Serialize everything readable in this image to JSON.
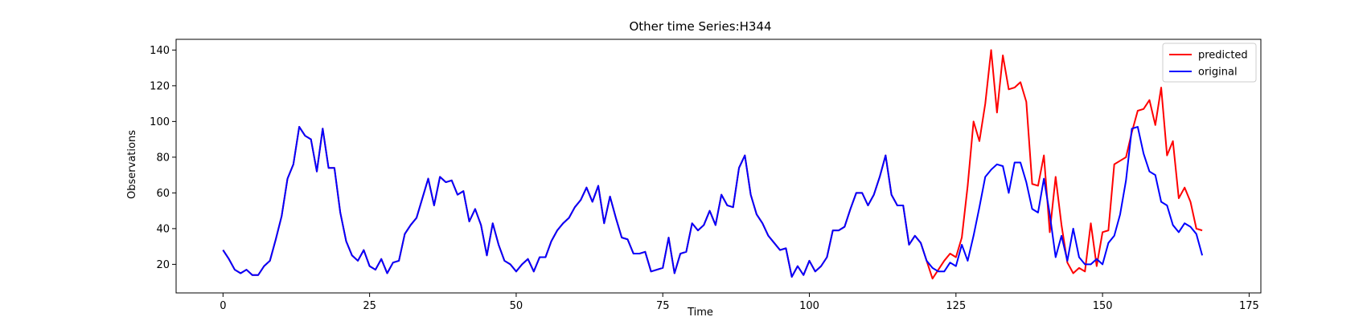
{
  "chart_data": {
    "type": "line",
    "title": "Other time Series:H344",
    "xlabel": "Time",
    "ylabel": "Observations",
    "xlim": [
      -8,
      177
    ],
    "ylim": [
      4,
      146
    ],
    "xticks": [
      0,
      25,
      50,
      75,
      100,
      125,
      150,
      175
    ],
    "yticks": [
      20,
      40,
      60,
      80,
      100,
      120,
      140
    ],
    "grid": false,
    "legend_position": "top-right",
    "series": [
      {
        "name": "predicted",
        "color": "#ff0000",
        "x_start": 0,
        "values": [
          28,
          23,
          17,
          15,
          17,
          14,
          14,
          19,
          22,
          34,
          47,
          68,
          76,
          97,
          92,
          90,
          72,
          96,
          74,
          74,
          49,
          33,
          25,
          22,
          28,
          19,
          17,
          23,
          15,
          21,
          22,
          37,
          42,
          46,
          57,
          68,
          53,
          69,
          66,
          67,
          59,
          61,
          44,
          51,
          42,
          25,
          43,
          31,
          22,
          20,
          16,
          20,
          23,
          16,
          24,
          24,
          33,
          39,
          43,
          46,
          52,
          56,
          63,
          55,
          64,
          43,
          58,
          46,
          35,
          34,
          26,
          26,
          27,
          16,
          17,
          18,
          35,
          15,
          26,
          27,
          43,
          39,
          42,
          50,
          42,
          59,
          53,
          52,
          74,
          81,
          59,
          48,
          43,
          36,
          32,
          28,
          29,
          13,
          19,
          14,
          22,
          16,
          19,
          24,
          39,
          39,
          41,
          51,
          60,
          60,
          53,
          59,
          69,
          81,
          59,
          53,
          53,
          31,
          36,
          32,
          22,
          12,
          17,
          22,
          26,
          24,
          35,
          64,
          100,
          89,
          110,
          140,
          105,
          137,
          118,
          119,
          122,
          111,
          65,
          64,
          81,
          38,
          69,
          42,
          21,
          15,
          18,
          16,
          43,
          19,
          38,
          39,
          76,
          78,
          80,
          94,
          106,
          107,
          112,
          98,
          119,
          81,
          89,
          57,
          63,
          55,
          40,
          39
        ]
      },
      {
        "name": "original",
        "color": "#0000ff",
        "x_start": 0,
        "values": [
          28,
          23,
          17,
          15,
          17,
          14,
          14,
          19,
          22,
          34,
          47,
          68,
          76,
          97,
          92,
          90,
          72,
          96,
          74,
          74,
          49,
          33,
          25,
          22,
          28,
          19,
          17,
          23,
          15,
          21,
          22,
          37,
          42,
          46,
          57,
          68,
          53,
          69,
          66,
          67,
          59,
          61,
          44,
          51,
          42,
          25,
          43,
          31,
          22,
          20,
          16,
          20,
          23,
          16,
          24,
          24,
          33,
          39,
          43,
          46,
          52,
          56,
          63,
          55,
          64,
          43,
          58,
          46,
          35,
          34,
          26,
          26,
          27,
          16,
          17,
          18,
          35,
          15,
          26,
          27,
          43,
          39,
          42,
          50,
          42,
          59,
          53,
          52,
          74,
          81,
          59,
          48,
          43,
          36,
          32,
          28,
          29,
          13,
          19,
          14,
          22,
          16,
          19,
          24,
          39,
          39,
          41,
          51,
          60,
          60,
          53,
          59,
          69,
          81,
          59,
          53,
          53,
          31,
          36,
          32,
          22,
          18,
          16,
          16,
          21,
          19,
          31,
          22,
          36,
          52,
          69,
          73,
          76,
          75,
          60,
          77,
          77,
          66,
          51,
          49,
          68,
          48,
          24,
          36,
          22,
          40,
          24,
          20,
          20,
          23,
          20,
          32,
          36,
          48,
          67,
          96,
          97,
          82,
          72,
          70,
          55,
          53,
          42,
          38,
          43,
          41,
          37,
          25
        ]
      }
    ]
  }
}
